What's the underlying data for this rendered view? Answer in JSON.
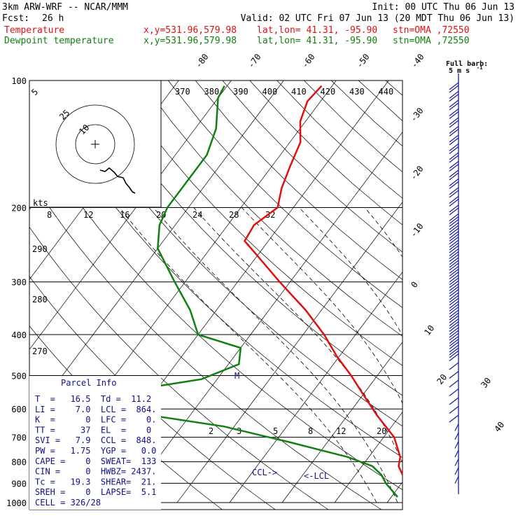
{
  "header": {
    "model": "3km ARW-WRF -- NCAR/MMM",
    "init": "Init: 00 UTC Thu 06 Jun 13",
    "fcst_label": "Fcst:",
    "fcst_value": "26 h",
    "valid": "Valid: 02 UTC Fri 07 Jun 13 (20 MDT Thu 06 Jun 13)",
    "temp_line": {
      "name": "Temperature",
      "xy": "x,y=531.96,579.98",
      "latlon": "lat,lon= 41.31, -95.90",
      "stn": "stn=OMA ,72550"
    },
    "dew_line": {
      "name": "Dewpoint temperature",
      "xy": "x,y=531.96,579.98",
      "latlon": "lat,lon= 41.31, -95.90",
      "stn": "stn=OMA ,72550"
    }
  },
  "colors": {
    "temperature": "#e01010",
    "dewpoint": "#108010",
    "barbs": "#1a1a9a",
    "parcel": "#10108a"
  },
  "hodograph": {
    "units_label": "kts",
    "ring_labels": [
      "5",
      "10",
      "25"
    ]
  },
  "wind_key": {
    "line1": "Full barb:",
    "line2": "5 m s",
    "sup": "-1"
  },
  "parcel_info": {
    "title": "Parcel Info",
    "rows": [
      "T  =   16.5  Td =  11.2",
      "LI =    7.0  LCL =  864.",
      "K  =      0  LFC =    0.",
      "TT =     37  EL  =    0",
      "SVI =   7.9  CCL =  848.",
      "PW =   1.75  YGP =   0.0",
      "CAPE =    0  SWEAT=  133",
      "CIN =     0  HWBZ= 2437.",
      "Tc =   19.3  SHEAR=  21.",
      "SREH =    0  LAPSE=  5.1",
      "CELL = 326/28"
    ]
  },
  "chart_data": {
    "type": "line",
    "title": "",
    "xlabel": "",
    "ylabel": "",
    "y_scale": "log-pressure (skew-T)",
    "pressure_levels_hPa": [
      "100",
      "200",
      "300",
      "400",
      "500",
      "600",
      "700",
      "800",
      "900",
      "1000"
    ],
    "isotherm_labels_C": [
      "-80",
      "-70",
      "-60",
      "-50",
      "-40",
      "-30",
      "-20",
      "-10",
      "0",
      "10",
      "20",
      "30",
      "40"
    ],
    "theta_labels_K": [
      "370",
      "380",
      "390",
      "400",
      "410",
      "420",
      "430",
      "440"
    ],
    "theta_left_labels_K": [
      "290",
      "280",
      "270"
    ],
    "mixing_ratio_labels_gkg": [
      "8",
      "12",
      "16",
      "20",
      "24",
      "28",
      "32"
    ],
    "mixing_ratio_lower_labels": [
      "2",
      "3",
      "5",
      "8",
      "12",
      "20"
    ],
    "annotations": [
      "M",
      "CCL->",
      "<-LCL"
    ],
    "series": [
      {
        "name": "Temperature",
        "color": "#e01010",
        "points": [
          {
            "p": 970,
            "t": 16.5
          },
          {
            "p": 940,
            "t": 14.5
          },
          {
            "p": 900,
            "t": 11.5
          },
          {
            "p": 860,
            "t": 9.0
          },
          {
            "p": 820,
            "t": 7.0
          },
          {
            "p": 780,
            "t": 6.0
          },
          {
            "p": 700,
            "t": 2.0
          },
          {
            "p": 620,
            "t": -4.5
          },
          {
            "p": 560,
            "t": -9.5
          },
          {
            "p": 500,
            "t": -15.0
          },
          {
            "p": 450,
            "t": -20.5
          },
          {
            "p": 400,
            "t": -26.0
          },
          {
            "p": 350,
            "t": -33.0
          },
          {
            "p": 300,
            "t": -42.0
          },
          {
            "p": 260,
            "t": -50.0
          },
          {
            "p": 240,
            "t": -54.5
          },
          {
            "p": 220,
            "t": -55.0
          },
          {
            "p": 200,
            "t": -53.0
          },
          {
            "p": 180,
            "t": -55.0
          },
          {
            "p": 160,
            "t": -56.5
          },
          {
            "p": 140,
            "t": -58.0
          },
          {
            "p": 125,
            "t": -61.0
          },
          {
            "p": 112,
            "t": -62.5
          },
          {
            "p": 103,
            "t": -62.0
          }
        ]
      },
      {
        "name": "Dewpoint temperature",
        "color": "#108010",
        "points": [
          {
            "p": 970,
            "t": 11.2
          },
          {
            "p": 900,
            "t": 7.0
          },
          {
            "p": 860,
            "t": 5.0
          },
          {
            "p": 820,
            "t": 2.0
          },
          {
            "p": 780,
            "t": -4.0
          },
          {
            "p": 720,
            "t": -17.0
          },
          {
            "p": 660,
            "t": -32.0
          },
          {
            "p": 620,
            "t": -48.0
          },
          {
            "p": 570,
            "t": -63.0
          },
          {
            "p": 540,
            "t": -54.0
          },
          {
            "p": 510,
            "t": -43.0
          },
          {
            "p": 470,
            "t": -38.0
          },
          {
            "p": 430,
            "t": -40.0
          },
          {
            "p": 400,
            "t": -50.0
          },
          {
            "p": 350,
            "t": -55.0
          },
          {
            "p": 300,
            "t": -62.0
          },
          {
            "p": 250,
            "t": -70.0
          },
          {
            "p": 220,
            "t": -73.0
          },
          {
            "p": 200,
            "t": -74.0
          },
          {
            "p": 170,
            "t": -74.0
          },
          {
            "p": 150,
            "t": -74.0
          },
          {
            "p": 130,
            "t": -76.0
          },
          {
            "p": 110,
            "t": -80.0
          },
          {
            "p": 103,
            "t": -80.5
          }
        ]
      }
    ]
  }
}
